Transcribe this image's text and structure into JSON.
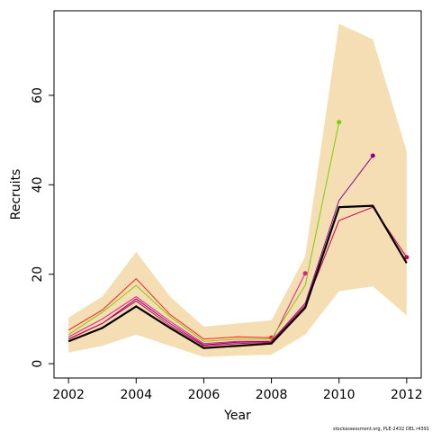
{
  "chart_data": {
    "type": "line",
    "xlabel": "Year",
    "ylabel": "Recruits",
    "footer": "stockassessment.org, PLE-2432 DEL r4391",
    "x": [
      2002,
      2003,
      2004,
      2005,
      2006,
      2007,
      2008,
      2009,
      2010,
      2011,
      2012
    ],
    "band": {
      "color": "#f5deb3",
      "upper": [
        10.3,
        15,
        25,
        15,
        8.3,
        9,
        9.7,
        24,
        76,
        72.5,
        47.5
      ],
      "lower": [
        2.5,
        4,
        6.5,
        4,
        1.5,
        1.8,
        2,
        6.5,
        16.2,
        17.3,
        10.8
      ]
    },
    "series": [
      {
        "color": "#ff1a1a",
        "width": 1,
        "values": [
          7.5,
          12,
          19,
          11,
          5.5,
          6,
          5.8,
          null,
          null,
          null,
          null
        ]
      },
      {
        "color": "#e8168a",
        "width": 1,
        "values": [
          6,
          10,
          15,
          9.5,
          4.5,
          5,
          5,
          20.2,
          null,
          null,
          null
        ]
      },
      {
        "color": "#7ccd00",
        "width": 1,
        "values": [
          6.5,
          11.5,
          17.5,
          10.5,
          5,
          5.5,
          5.5,
          17.5,
          54,
          null,
          null
        ]
      },
      {
        "color": "#8b008b",
        "width": 1,
        "values": [
          5.5,
          9,
          14.5,
          9,
          4.2,
          4.8,
          5,
          13.5,
          36.5,
          46.5,
          null
        ]
      },
      {
        "color": "#c7004c",
        "width": 1,
        "values": [
          5.5,
          9,
          14,
          8.5,
          4,
          4.5,
          4.8,
          13,
          32,
          35,
          23.8
        ]
      },
      {
        "color": "#000000",
        "width": 2.2,
        "values": [
          5,
          8,
          12.8,
          8,
          3.5,
          4,
          4.5,
          12.5,
          35,
          35.3,
          22.5
        ]
      }
    ],
    "xlim": [
      2001.57,
      2012.43
    ],
    "ylim": [
      -3.2,
      78.9
    ],
    "xticks": [
      2002,
      2004,
      2006,
      2008,
      2010,
      2012
    ],
    "yticks": [
      0,
      20,
      40,
      60
    ]
  }
}
